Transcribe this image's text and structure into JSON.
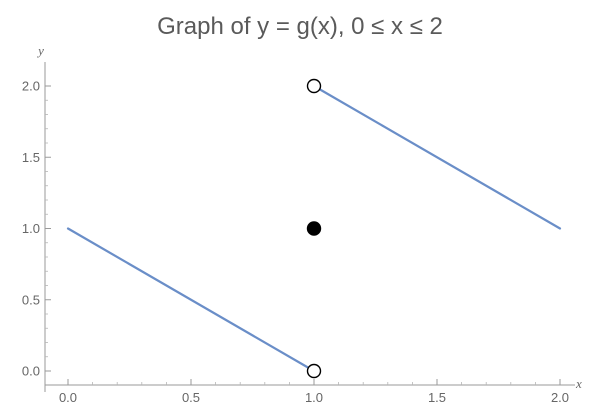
{
  "chart_data": {
    "type": "line",
    "title": "Graph of y = g(x), 0 ≤ x ≤ 2",
    "xlabel": "x",
    "ylabel": "y",
    "xlim": [
      0,
      2
    ],
    "ylim": [
      0,
      2
    ],
    "x_ticks": [
      "0.0",
      "0.5",
      "1.0",
      "1.5",
      "2.0"
    ],
    "y_ticks": [
      "0.0",
      "0.5",
      "1.0",
      "1.5",
      "2.0"
    ],
    "grid": false,
    "line_color": "#6a8ec8",
    "series": [
      {
        "x": [
          0,
          1
        ],
        "y": [
          1,
          0
        ]
      },
      {
        "x": [
          1,
          2
        ],
        "y": [
          2,
          1
        ]
      }
    ],
    "points": [
      {
        "x": 1,
        "y": 2,
        "style": "open"
      },
      {
        "x": 1,
        "y": 0,
        "style": "open"
      },
      {
        "x": 1,
        "y": 1,
        "style": "filled"
      }
    ]
  }
}
